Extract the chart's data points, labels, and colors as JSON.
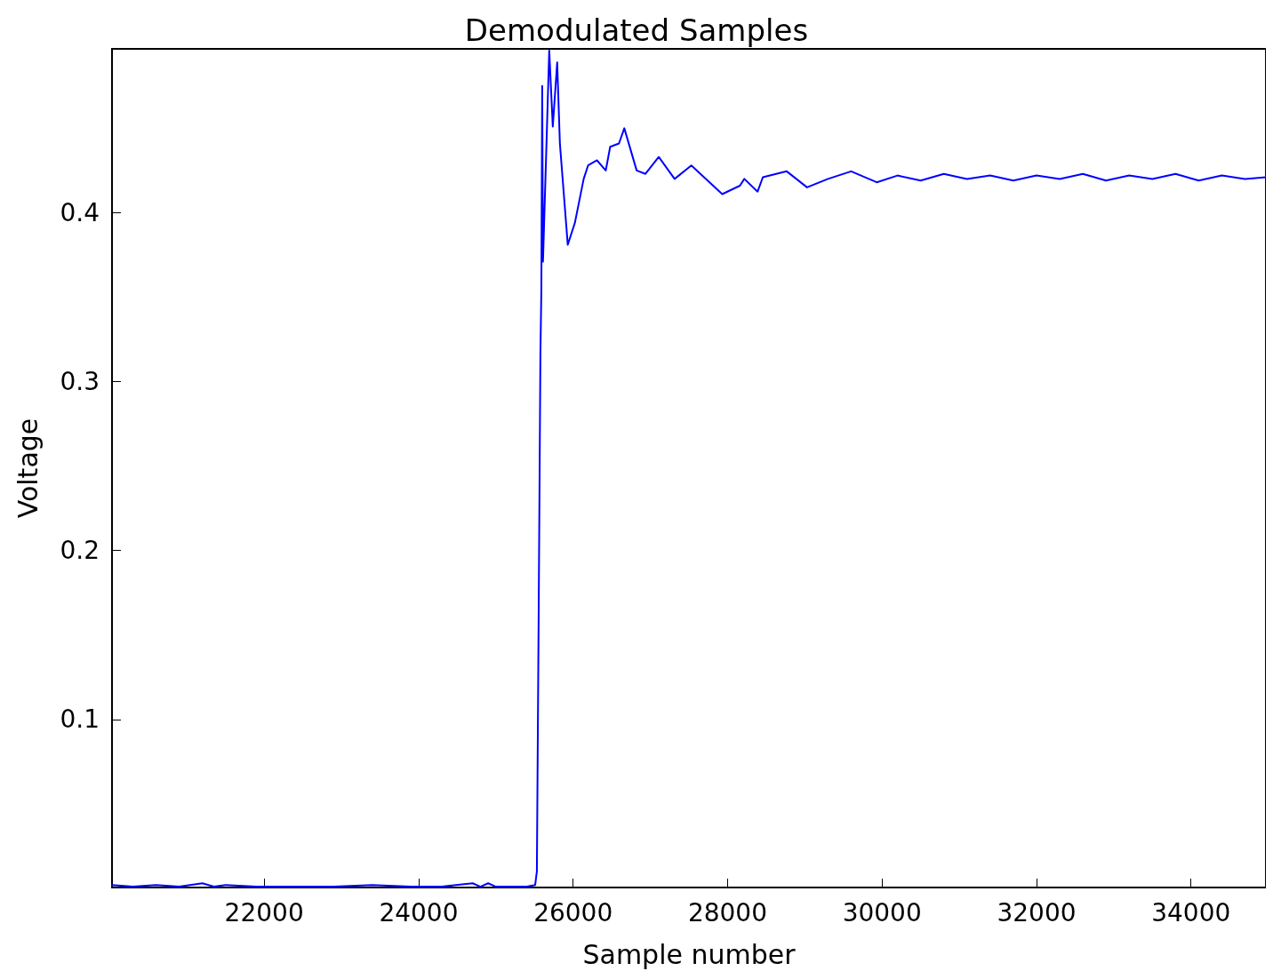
{
  "chart_data": {
    "type": "line",
    "title": "Demodulated Samples",
    "xlabel": "Sample number",
    "ylabel": "Voltage",
    "xlim": [
      20030,
      34970
    ],
    "ylim": [
      0.0005,
      0.497
    ],
    "xticks": [
      22000,
      24000,
      26000,
      28000,
      30000,
      32000,
      34000
    ],
    "yticks": [
      0.1,
      0.2,
      0.3,
      0.4
    ],
    "grid": false,
    "marker": "none",
    "line_style": "solid",
    "series": [
      {
        "color": "#0000ff",
        "x": [
          20030,
          20300,
          20600,
          20900,
          21200,
          21350,
          21500,
          21900,
          22400,
          22900,
          23400,
          23900,
          24300,
          24700,
          24800,
          24900,
          25000,
          25200,
          25400,
          25509,
          25531,
          25554,
          25577,
          25589,
          25600,
          25610,
          25640,
          25691,
          25737,
          25794,
          25829,
          25931,
          26023,
          26137,
          26194,
          26309,
          26423,
          26480,
          26594,
          26663,
          26823,
          26937,
          27109,
          27314,
          27531,
          27931,
          28160,
          28217,
          28389,
          28457,
          28766,
          29029,
          29300,
          29600,
          29931,
          30200,
          30500,
          30800,
          31100,
          31400,
          31700,
          32000,
          32300,
          32600,
          32900,
          33200,
          33500,
          33800,
          34100,
          34400,
          34700,
          34970
        ],
        "values": [
          0.002,
          0.001,
          0.002,
          0.001,
          0.003,
          0.001,
          0.002,
          0.001,
          0.001,
          0.001,
          0.002,
          0.001,
          0.001,
          0.003,
          0.001,
          0.003,
          0.001,
          0.001,
          0.001,
          0.002,
          0.01,
          0.161,
          0.317,
          0.354,
          0.475,
          0.371,
          0.417,
          0.496,
          0.451,
          0.489,
          0.441,
          0.381,
          0.394,
          0.42,
          0.428,
          0.431,
          0.425,
          0.439,
          0.441,
          0.45,
          0.425,
          0.423,
          0.433,
          0.42,
          0.428,
          0.411,
          0.416,
          0.42,
          0.4125,
          0.421,
          0.4245,
          0.415,
          0.42,
          0.4245,
          0.418,
          0.422,
          0.419,
          0.423,
          0.42,
          0.422,
          0.419,
          0.422,
          0.42,
          0.423,
          0.419,
          0.422,
          0.42,
          0.423,
          0.419,
          0.422,
          0.42,
          0.421
        ]
      }
    ]
  }
}
